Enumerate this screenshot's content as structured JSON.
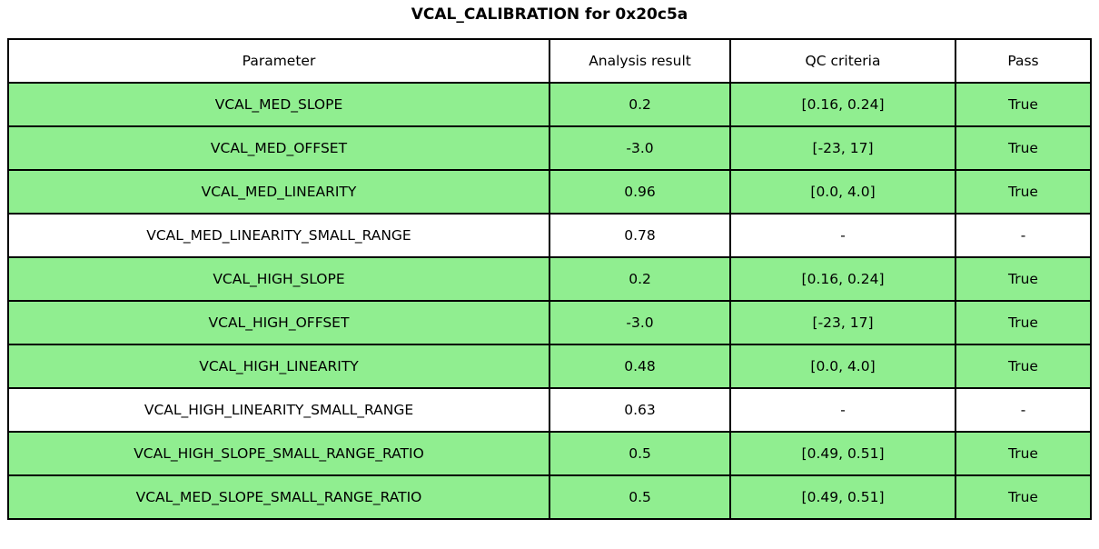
{
  "title": "VCAL_CALIBRATION for 0x20c5a",
  "colors": {
    "pass_row_bg": "#90ee90",
    "neutral_row_bg": "#ffffff",
    "border": "#000000"
  },
  "chart_data": {
    "type": "table",
    "title": "VCAL_CALIBRATION for 0x20c5a",
    "columns": [
      "Parameter",
      "Analysis result",
      "QC criteria",
      "Pass"
    ],
    "rows": [
      {
        "parameter": "VCAL_MED_SLOPE",
        "analysis_result": "0.2",
        "qc_criteria": "[0.16, 0.24]",
        "pass": "True",
        "highlighted": true
      },
      {
        "parameter": "VCAL_MED_OFFSET",
        "analysis_result": "-3.0",
        "qc_criteria": "[-23, 17]",
        "pass": "True",
        "highlighted": true
      },
      {
        "parameter": "VCAL_MED_LINEARITY",
        "analysis_result": "0.96",
        "qc_criteria": "[0.0, 4.0]",
        "pass": "True",
        "highlighted": true
      },
      {
        "parameter": "VCAL_MED_LINEARITY_SMALL_RANGE",
        "analysis_result": "0.78",
        "qc_criteria": "-",
        "pass": "-",
        "highlighted": false
      },
      {
        "parameter": "VCAL_HIGH_SLOPE",
        "analysis_result": "0.2",
        "qc_criteria": "[0.16, 0.24]",
        "pass": "True",
        "highlighted": true
      },
      {
        "parameter": "VCAL_HIGH_OFFSET",
        "analysis_result": "-3.0",
        "qc_criteria": "[-23, 17]",
        "pass": "True",
        "highlighted": true
      },
      {
        "parameter": "VCAL_HIGH_LINEARITY",
        "analysis_result": "0.48",
        "qc_criteria": "[0.0, 4.0]",
        "pass": "True",
        "highlighted": true
      },
      {
        "parameter": "VCAL_HIGH_LINEARITY_SMALL_RANGE",
        "analysis_result": "0.63",
        "qc_criteria": "-",
        "pass": "-",
        "highlighted": false
      },
      {
        "parameter": "VCAL_HIGH_SLOPE_SMALL_RANGE_RATIO",
        "analysis_result": "0.5",
        "qc_criteria": "[0.49, 0.51]",
        "pass": "True",
        "highlighted": true
      },
      {
        "parameter": "VCAL_MED_SLOPE_SMALL_RANGE_RATIO",
        "analysis_result": "0.5",
        "qc_criteria": "[0.49, 0.51]",
        "pass": "True",
        "highlighted": true
      }
    ]
  }
}
